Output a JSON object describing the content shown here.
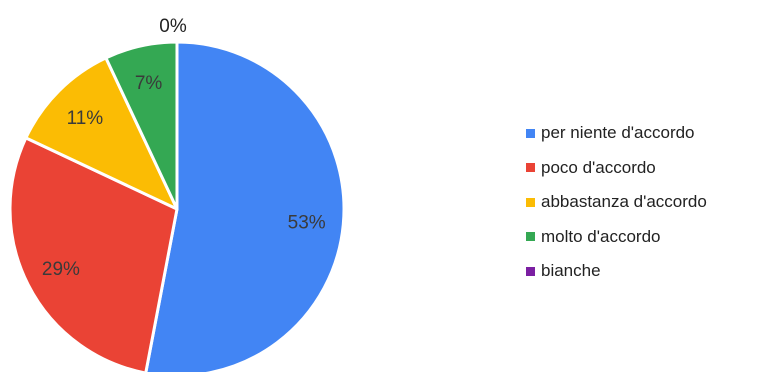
{
  "chart_data": {
    "type": "pie",
    "title": "",
    "legend_position": "right",
    "slices": [
      {
        "label": "per niente d'accordo",
        "value": 53,
        "value_label": "53%",
        "color": "#4285f4"
      },
      {
        "label": "poco d'accordo",
        "value": 29,
        "value_label": "29%",
        "color": "#ea4335"
      },
      {
        "label": "abbastanza d'accordo",
        "value": 11,
        "value_label": "11%",
        "color": "#fbbc04"
      },
      {
        "label": "molto d'accordo",
        "value": 7,
        "value_label": "7%",
        "color": "#34a853"
      },
      {
        "label": "bianche",
        "value": 0,
        "value_label": "0%",
        "color": "#7b1fa2"
      }
    ]
  }
}
